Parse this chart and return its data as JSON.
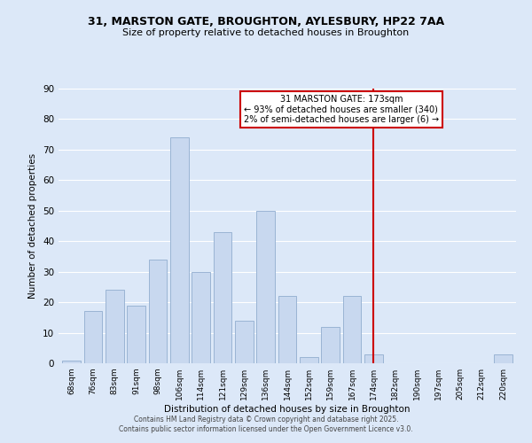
{
  "title_line1": "31, MARSTON GATE, BROUGHTON, AYLESBURY, HP22 7AA",
  "title_line2": "Size of property relative to detached houses in Broughton",
  "xlabel": "Distribution of detached houses by size in Broughton",
  "ylabel": "Number of detached properties",
  "bar_labels": [
    "68sqm",
    "76sqm",
    "83sqm",
    "91sqm",
    "98sqm",
    "106sqm",
    "114sqm",
    "121sqm",
    "129sqm",
    "136sqm",
    "144sqm",
    "152sqm",
    "159sqm",
    "167sqm",
    "174sqm",
    "182sqm",
    "190sqm",
    "197sqm",
    "205sqm",
    "212sqm",
    "220sqm"
  ],
  "bar_values": [
    1,
    17,
    24,
    19,
    34,
    74,
    30,
    43,
    14,
    50,
    22,
    2,
    12,
    22,
    3,
    0,
    0,
    0,
    0,
    0,
    3
  ],
  "bar_color": "#c8d8ef",
  "bar_edge_color": "#9ab4d4",
  "background_color": "#dce8f8",
  "grid_color": "#ffffff",
  "vline_index": 14,
  "vline_color": "#cc0000",
  "annotation_text": "31 MARSTON GATE: 173sqm\n← 93% of detached houses are smaller (340)\n2% of semi-detached houses are larger (6) →",
  "annotation_box_color": "#ffffff",
  "annotation_border_color": "#cc0000",
  "footer_line1": "Contains HM Land Registry data © Crown copyright and database right 2025.",
  "footer_line2": "Contains public sector information licensed under the Open Government Licence v3.0.",
  "ylim": [
    0,
    90
  ],
  "yticks": [
    0,
    10,
    20,
    30,
    40,
    50,
    60,
    70,
    80,
    90
  ]
}
